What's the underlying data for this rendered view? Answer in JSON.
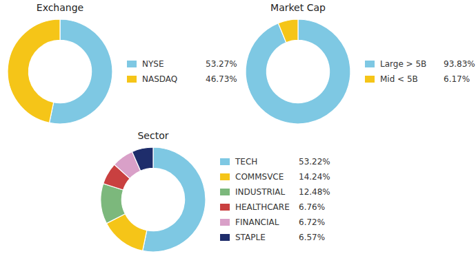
{
  "chart_data": [
    {
      "type": "donut",
      "title": "Exchange",
      "categories": [
        "NYSE",
        "NASDAQ"
      ],
      "values": [
        53.27,
        46.73
      ],
      "value_labels": [
        "53.27%",
        "46.73%"
      ],
      "colors": [
        "#7EC8E3",
        "#F5C518"
      ],
      "legend": "right"
    },
    {
      "type": "donut",
      "title": "Market Cap",
      "categories": [
        "Large > 5B",
        "Mid < 5B"
      ],
      "values": [
        93.83,
        6.17
      ],
      "value_labels": [
        "93.83%",
        "6.17%"
      ],
      "colors": [
        "#7EC8E3",
        "#F5C518"
      ],
      "legend": "right"
    },
    {
      "type": "donut",
      "title": "Sector",
      "categories": [
        "TECH",
        "COMMSVCE",
        "INDUSTRIAL",
        "HEALTHCARE",
        "FINANCIAL",
        "STAPLE"
      ],
      "values": [
        53.22,
        14.24,
        12.48,
        6.76,
        6.72,
        6.57
      ],
      "value_labels": [
        "53.22%",
        "14.24%",
        "12.48%",
        "6.76%",
        "6.72%",
        "6.57%"
      ],
      "colors": [
        "#7EC8E3",
        "#F5C518",
        "#7CB87C",
        "#C94040",
        "#D9A0C8",
        "#1E2D6B"
      ],
      "legend": "right"
    }
  ]
}
